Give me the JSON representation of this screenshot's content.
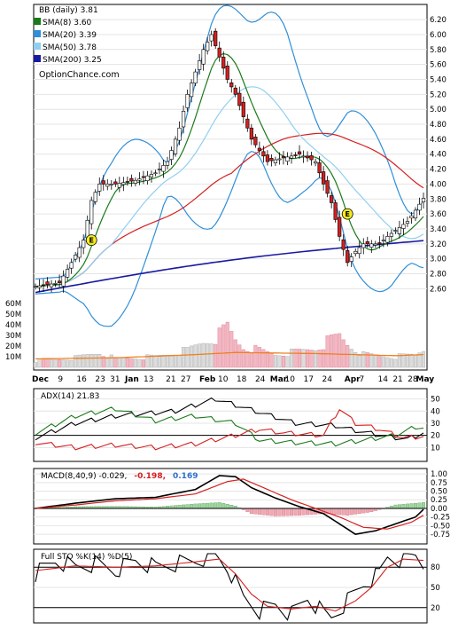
{
  "chart_data": [
    {
      "type": "line",
      "panel": "price",
      "legend": [
        {
          "label": "BB (daily) 3.81",
          "color": "#000000",
          "swatch": false
        },
        {
          "label": "SMA(8) 3.60",
          "color": "#1a7a1a",
          "swatch": true
        },
        {
          "label": "SMA(20) 3.39",
          "color": "#2f8fd8",
          "swatch": true
        },
        {
          "label": "SMA(50) 3.78",
          "color": "#8fd0f0",
          "swatch": true
        },
        {
          "label": "SMA(200) 3.25",
          "color": "#1a1aa0",
          "swatch": true
        }
      ],
      "watermark": "OptionChance.com",
      "yticks": [
        6.2,
        6.0,
        5.8,
        5.6,
        5.4,
        5.2,
        5.0,
        4.8,
        4.6,
        4.4,
        4.2,
        4.0,
        3.8,
        3.6,
        3.4,
        3.2,
        3.0,
        2.8,
        2.6
      ],
      "ylim": [
        2.45,
        6.32
      ],
      "volume_ticks": [
        "60M",
        "50M",
        "40M",
        "30M",
        "20M",
        "10M"
      ],
      "volume_lim": [
        0,
        66
      ],
      "event_markers": [
        "E",
        "E"
      ],
      "x_labels": [
        "Dec",
        "9",
        "16",
        "23",
        "31",
        "Jan",
        "13",
        "21",
        "27",
        "Feb",
        "10",
        "18",
        "24",
        "Mar",
        "10",
        "17",
        "24",
        "Apr",
        "7",
        "14",
        "21",
        "28",
        "May"
      ],
      "x_label_bold": [
        "Dec",
        "Jan",
        "Feb",
        "Mar",
        "Apr",
        "May"
      ],
      "close_keypoints": [
        [
          0,
          2.63
        ],
        [
          6,
          2.68
        ],
        [
          9,
          2.95
        ],
        [
          12,
          3.25
        ],
        [
          14,
          3.78
        ],
        [
          16,
          4.0
        ],
        [
          20,
          4.0
        ],
        [
          25,
          4.05
        ],
        [
          30,
          4.15
        ],
        [
          33,
          4.3
        ],
        [
          36,
          4.75
        ],
        [
          38,
          5.2
        ],
        [
          42,
          5.8
        ],
        [
          44,
          6.0
        ],
        [
          46,
          5.7
        ],
        [
          48,
          5.4
        ],
        [
          50,
          5.2
        ],
        [
          52,
          4.9
        ],
        [
          54,
          4.6
        ],
        [
          56,
          4.45
        ],
        [
          58,
          4.3
        ],
        [
          62,
          4.35
        ],
        [
          66,
          4.4
        ],
        [
          70,
          4.3
        ],
        [
          72,
          4.0
        ],
        [
          74,
          3.75
        ],
        [
          76,
          3.3
        ],
        [
          78,
          2.95
        ],
        [
          80,
          3.1
        ],
        [
          82,
          3.2
        ],
        [
          86,
          3.2
        ],
        [
          88,
          3.3
        ],
        [
          90,
          3.38
        ],
        [
          93,
          3.5
        ],
        [
          95,
          3.65
        ],
        [
          97,
          3.81
        ]
      ],
      "volume_keypoints": [
        [
          0,
          6
        ],
        [
          10,
          9
        ],
        [
          16,
          14
        ],
        [
          20,
          8
        ],
        [
          30,
          10
        ],
        [
          38,
          16
        ],
        [
          42,
          24
        ],
        [
          46,
          30
        ],
        [
          48,
          38
        ],
        [
          50,
          26
        ],
        [
          52,
          19
        ],
        [
          56,
          16
        ],
        [
          60,
          12
        ],
        [
          64,
          14
        ],
        [
          70,
          18
        ],
        [
          74,
          26
        ],
        [
          76,
          30
        ],
        [
          78,
          22
        ],
        [
          82,
          12
        ],
        [
          86,
          11
        ],
        [
          90,
          10
        ],
        [
          95,
          12
        ],
        [
          97,
          17
        ]
      ],
      "volume_avg_keypoints": [
        [
          0,
          8
        ],
        [
          20,
          9
        ],
        [
          40,
          12
        ],
        [
          50,
          14
        ],
        [
          70,
          13
        ],
        [
          80,
          12
        ],
        [
          90,
          11
        ],
        [
          97,
          12
        ]
      ]
    },
    {
      "type": "line",
      "panel": "adx",
      "label": "ADX(14) 21.83",
      "yticks": [
        50,
        40,
        30,
        20,
        10
      ],
      "ylim": [
        0,
        57
      ],
      "series": [
        {
          "name": "ADX",
          "color": "#000000",
          "keypoints": [
            [
              0,
              18
            ],
            [
              10,
              30
            ],
            [
              20,
              36
            ],
            [
              35,
              40
            ],
            [
              45,
              50
            ],
            [
              55,
              40
            ],
            [
              65,
              30
            ],
            [
              75,
              28
            ],
            [
              80,
              24
            ],
            [
              88,
              19
            ],
            [
              93,
              17
            ],
            [
              97,
              22
            ]
          ]
        },
        {
          "name": "+DI",
          "color": "#1a7a1a",
          "keypoints": [
            [
              0,
              22
            ],
            [
              10,
              36
            ],
            [
              20,
              42
            ],
            [
              30,
              32
            ],
            [
              40,
              36
            ],
            [
              50,
              30
            ],
            [
              56,
              16
            ],
            [
              65,
              14
            ],
            [
              75,
              13
            ],
            [
              82,
              16
            ],
            [
              90,
              20
            ],
            [
              95,
              27
            ],
            [
              97,
              26
            ]
          ]
        },
        {
          "name": "-DI",
          "color": "#d42020",
          "keypoints": [
            [
              0,
              14
            ],
            [
              10,
              10
            ],
            [
              20,
              12
            ],
            [
              30,
              10
            ],
            [
              40,
              13
            ],
            [
              50,
              20
            ],
            [
              56,
              25
            ],
            [
              62,
              22
            ],
            [
              72,
              20
            ],
            [
              76,
              42
            ],
            [
              80,
              30
            ],
            [
              86,
              25
            ],
            [
              92,
              18
            ],
            [
              97,
              19
            ]
          ]
        }
      ]
    },
    {
      "type": "line",
      "panel": "macd",
      "label": "MACD(8,40,9) -0.029,",
      "label_red": "-0.198,",
      "label_blue": "0.169",
      "yticks": [
        "1.00",
        "0.75",
        "0.50",
        "0.25",
        "0.00",
        "-0.25",
        "-0.50",
        "-0.75"
      ],
      "ylim": [
        -0.98,
        1.08
      ],
      "series": [
        {
          "name": "MACD",
          "color": "#000000",
          "keypoints": [
            [
              0,
              0.0
            ],
            [
              10,
              0.15
            ],
            [
              20,
              0.28
            ],
            [
              30,
              0.32
            ],
            [
              40,
              0.55
            ],
            [
              46,
              0.95
            ],
            [
              50,
              0.92
            ],
            [
              54,
              0.6
            ],
            [
              60,
              0.3
            ],
            [
              66,
              0.05
            ],
            [
              72,
              -0.15
            ],
            [
              76,
              -0.45
            ],
            [
              80,
              -0.75
            ],
            [
              85,
              -0.65
            ],
            [
              90,
              -0.45
            ],
            [
              95,
              -0.25
            ],
            [
              97,
              -0.03
            ]
          ]
        },
        {
          "name": "Signal",
          "color": "#d42020",
          "keypoints": [
            [
              0,
              0.0
            ],
            [
              10,
              0.1
            ],
            [
              20,
              0.22
            ],
            [
              30,
              0.28
            ],
            [
              40,
              0.42
            ],
            [
              48,
              0.78
            ],
            [
              52,
              0.85
            ],
            [
              58,
              0.55
            ],
            [
              64,
              0.25
            ],
            [
              70,
              0.0
            ],
            [
              76,
              -0.25
            ],
            [
              82,
              -0.55
            ],
            [
              88,
              -0.6
            ],
            [
              94,
              -0.4
            ],
            [
              97,
              -0.2
            ]
          ]
        },
        {
          "name": "Histogram",
          "color": "#2f7f2f",
          "keypoints": [
            [
              0,
              0.0
            ],
            [
              10,
              0.05
            ],
            [
              20,
              0.06
            ],
            [
              30,
              0.04
            ],
            [
              40,
              0.13
            ],
            [
              46,
              0.17
            ],
            [
              50,
              0.07
            ],
            [
              54,
              -0.15
            ],
            [
              60,
              -0.22
            ],
            [
              66,
              -0.2
            ],
            [
              72,
              -0.15
            ],
            [
              78,
              -0.2
            ],
            [
              84,
              -0.1
            ],
            [
              90,
              0.1
            ],
            [
              95,
              0.15
            ],
            [
              97,
              0.17
            ]
          ]
        }
      ]
    },
    {
      "type": "line",
      "panel": "stochastic",
      "label": "Full STO %K(14) %D(5)",
      "yticks": [
        80,
        50,
        20
      ],
      "ylim": [
        0,
        104
      ],
      "series": [
        {
          "name": "%K",
          "color": "#000000",
          "keypoints": [
            [
              0,
              70
            ],
            [
              5,
              90
            ],
            [
              10,
              80
            ],
            [
              15,
              85
            ],
            [
              20,
              75
            ],
            [
              25,
              90
            ],
            [
              30,
              80
            ],
            [
              35,
              85
            ],
            [
              40,
              90
            ],
            [
              45,
              98
            ],
            [
              48,
              80
            ],
            [
              52,
              35
            ],
            [
              56,
              15
            ],
            [
              60,
              25
            ],
            [
              64,
              10
            ],
            [
              68,
              35
            ],
            [
              72,
              12
            ],
            [
              74,
              5
            ],
            [
              78,
              30
            ],
            [
              82,
              55
            ],
            [
              86,
              70
            ],
            [
              88,
              95
            ],
            [
              92,
              90
            ],
            [
              95,
              98
            ],
            [
              97,
              85
            ]
          ]
        },
        {
          "name": "%D",
          "color": "#d42020",
          "keypoints": [
            [
              0,
              75
            ],
            [
              10,
              82
            ],
            [
              20,
              80
            ],
            [
              30,
              82
            ],
            [
              40,
              88
            ],
            [
              46,
              92
            ],
            [
              50,
              70
            ],
            [
              54,
              40
            ],
            [
              58,
              22
            ],
            [
              64,
              18
            ],
            [
              70,
              22
            ],
            [
              75,
              15
            ],
            [
              80,
              30
            ],
            [
              84,
              50
            ],
            [
              88,
              80
            ],
            [
              92,
              92
            ],
            [
              97,
              90
            ]
          ]
        }
      ]
    }
  ]
}
